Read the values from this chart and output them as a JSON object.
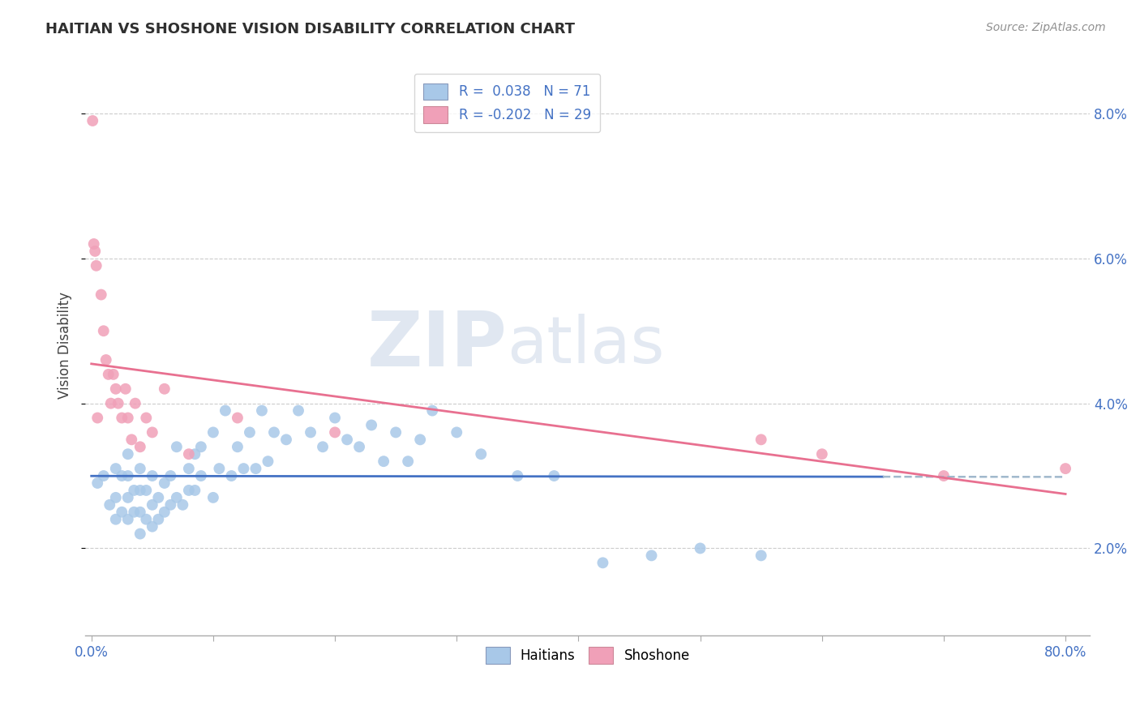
{
  "title": "HAITIAN VS SHOSHONE VISION DISABILITY CORRELATION CHART",
  "source": "Source: ZipAtlas.com",
  "ylabel": "Vision Disability",
  "xlim": [
    -0.005,
    0.82
  ],
  "ylim": [
    0.008,
    0.088
  ],
  "xticks": [
    0.0,
    0.1,
    0.2,
    0.3,
    0.4,
    0.5,
    0.6,
    0.7,
    0.8
  ],
  "xticklabels_sparse": [
    "0.0%",
    "",
    "",
    "",
    "",
    "",
    "",
    "",
    "80.0%"
  ],
  "yticks": [
    0.02,
    0.04,
    0.06,
    0.08
  ],
  "yticklabels": [
    "2.0%",
    "4.0%",
    "6.0%",
    "8.0%"
  ],
  "legend_r1": "R =  0.038",
  "legend_n1": "N = 71",
  "legend_r2": "R = -0.202",
  "legend_n2": "N = 29",
  "color_blue": "#a8c8e8",
  "color_pink": "#f0a0b8",
  "color_blue_line": "#4472c4",
  "color_pink_line": "#e87090",
  "color_gray_dash": "#a0b8cc",
  "watermark_color": "#ccd8e8",
  "title_color": "#303030",
  "tick_color": "#4472c4",
  "source_color": "#909090",
  "haitians_x": [
    0.005,
    0.01,
    0.015,
    0.02,
    0.02,
    0.02,
    0.025,
    0.025,
    0.03,
    0.03,
    0.03,
    0.03,
    0.035,
    0.035,
    0.04,
    0.04,
    0.04,
    0.04,
    0.045,
    0.045,
    0.05,
    0.05,
    0.05,
    0.055,
    0.055,
    0.06,
    0.06,
    0.065,
    0.065,
    0.07,
    0.07,
    0.075,
    0.08,
    0.08,
    0.085,
    0.085,
    0.09,
    0.09,
    0.1,
    0.1,
    0.105,
    0.11,
    0.115,
    0.12,
    0.125,
    0.13,
    0.135,
    0.14,
    0.145,
    0.15,
    0.16,
    0.17,
    0.18,
    0.19,
    0.2,
    0.21,
    0.22,
    0.23,
    0.24,
    0.25,
    0.26,
    0.27,
    0.28,
    0.3,
    0.32,
    0.35,
    0.38,
    0.42,
    0.46,
    0.5,
    0.55
  ],
  "haitians_y": [
    0.029,
    0.03,
    0.026,
    0.024,
    0.027,
    0.031,
    0.025,
    0.03,
    0.024,
    0.027,
    0.03,
    0.033,
    0.025,
    0.028,
    0.022,
    0.025,
    0.028,
    0.031,
    0.024,
    0.028,
    0.023,
    0.026,
    0.03,
    0.024,
    0.027,
    0.025,
    0.029,
    0.026,
    0.03,
    0.027,
    0.034,
    0.026,
    0.028,
    0.031,
    0.028,
    0.033,
    0.03,
    0.034,
    0.027,
    0.036,
    0.031,
    0.039,
    0.03,
    0.034,
    0.031,
    0.036,
    0.031,
    0.039,
    0.032,
    0.036,
    0.035,
    0.039,
    0.036,
    0.034,
    0.038,
    0.035,
    0.034,
    0.037,
    0.032,
    0.036,
    0.032,
    0.035,
    0.039,
    0.036,
    0.033,
    0.03,
    0.03,
    0.018,
    0.019,
    0.02,
    0.019
  ],
  "shoshone_x": [
    0.001,
    0.002,
    0.003,
    0.004,
    0.005,
    0.008,
    0.01,
    0.012,
    0.014,
    0.016,
    0.018,
    0.02,
    0.022,
    0.025,
    0.028,
    0.03,
    0.033,
    0.036,
    0.04,
    0.045,
    0.05,
    0.06,
    0.08,
    0.12,
    0.2,
    0.55,
    0.6,
    0.7,
    0.8
  ],
  "shoshone_y": [
    0.079,
    0.062,
    0.061,
    0.059,
    0.038,
    0.055,
    0.05,
    0.046,
    0.044,
    0.04,
    0.044,
    0.042,
    0.04,
    0.038,
    0.042,
    0.038,
    0.035,
    0.04,
    0.034,
    0.038,
    0.036,
    0.042,
    0.033,
    0.038,
    0.036,
    0.035,
    0.033,
    0.03,
    0.031
  ]
}
